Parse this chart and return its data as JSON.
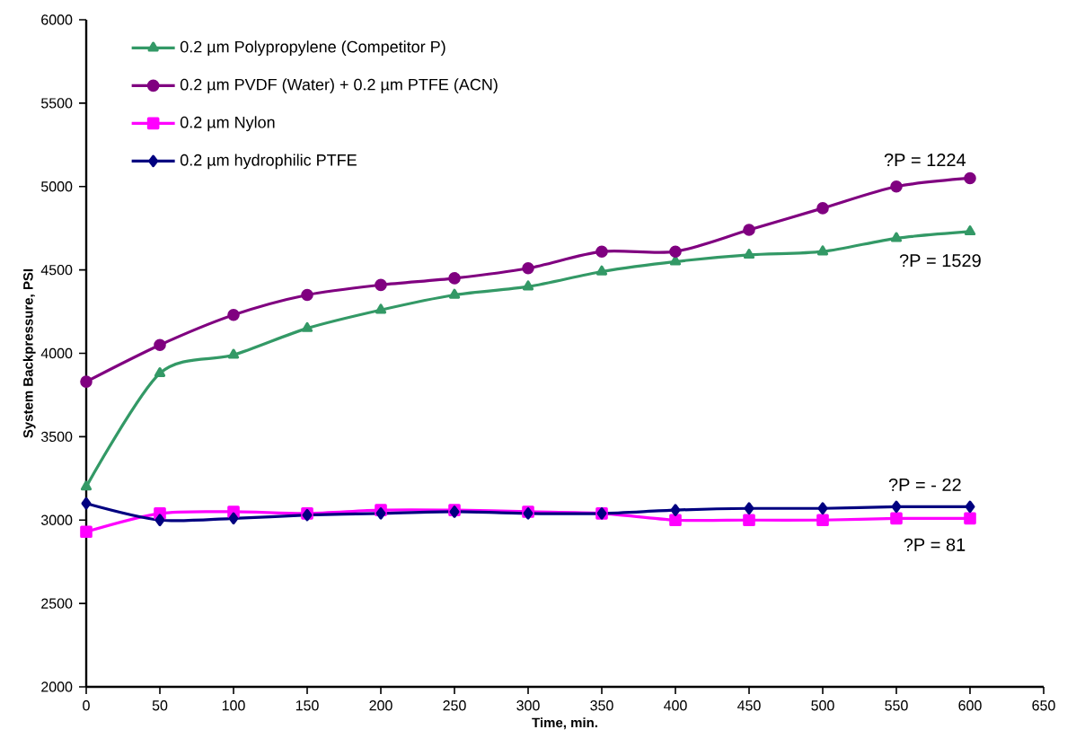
{
  "chart_data": {
    "type": "line",
    "xlabel": "Time, min.",
    "ylabel": "System Backpressure, PSI",
    "x": [
      0,
      50,
      100,
      150,
      200,
      250,
      300,
      350,
      400,
      450,
      500,
      550,
      600
    ],
    "series": [
      {
        "name": "0.2 µm Polypropylene (Competitor P)",
        "color": "#339966",
        "marker": "triangle",
        "values": [
          3200,
          3880,
          3990,
          4150,
          4260,
          4350,
          4400,
          4490,
          4550,
          4590,
          4610,
          4690,
          4730
        ]
      },
      {
        "name": "0.2 µm PVDF (Water) + 0.2 µm PTFE (ACN)",
        "color": "#800080",
        "marker": "circle",
        "values": [
          3830,
          4050,
          4230,
          4350,
          4410,
          4450,
          4510,
          4610,
          4610,
          4740,
          4870,
          5000,
          5050
        ]
      },
      {
        "name": "0.2 µm Nylon",
        "color": "#ff00ff",
        "marker": "square",
        "values": [
          2930,
          3040,
          3050,
          3040,
          3060,
          3060,
          3050,
          3040,
          3000,
          3000,
          3000,
          3010,
          3010
        ]
      },
      {
        "name": "0.2 µm hydrophilic PTFE",
        "color": "#000080",
        "marker": "diamond",
        "values": [
          3100,
          3000,
          3010,
          3030,
          3040,
          3050,
          3040,
          3040,
          3060,
          3070,
          3070,
          3080,
          3080
        ]
      }
    ],
    "xlim": [
      0,
      650
    ],
    "xticks": [
      0,
      50,
      100,
      150,
      200,
      250,
      300,
      350,
      400,
      450,
      500,
      550,
      600,
      650
    ],
    "ylim": [
      2000,
      6000
    ],
    "yticks": [
      2000,
      2500,
      3000,
      3500,
      4000,
      4500,
      5000,
      5500,
      6000
    ],
    "grid": false,
    "legend": "top left",
    "line_style": "solid",
    "annotations": [
      "?P = 1224",
      "?P = 1529",
      "?P = - 22",
      "?P = 81"
    ]
  }
}
